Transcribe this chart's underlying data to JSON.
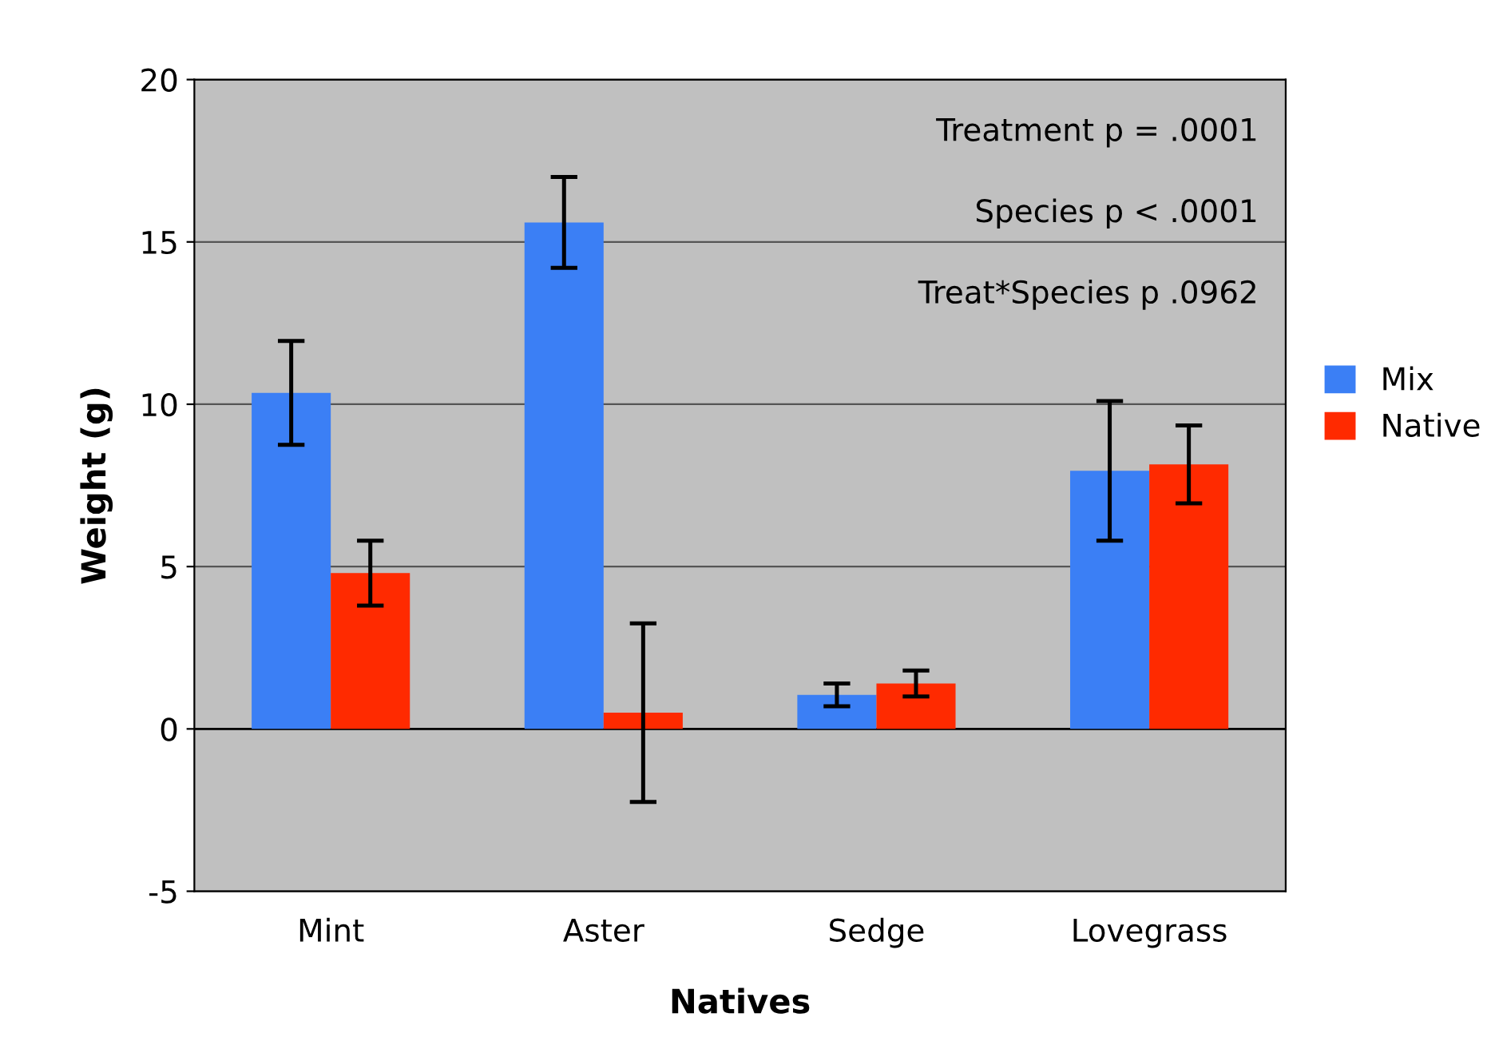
{
  "chart_data": {
    "type": "bar",
    "xlabel": "Natives",
    "ylabel": "Weight (g)",
    "categories": [
      "Mint",
      "Aster",
      "Sedge",
      "Lovegrass"
    ],
    "series": [
      {
        "name": "Mix",
        "color": "#3b7ff5",
        "values": [
          10.35,
          15.6,
          1.05,
          7.95
        ],
        "errors": [
          1.6,
          1.4,
          0.35,
          2.15
        ]
      },
      {
        "name": "Native",
        "color": "#ff2a00",
        "values": [
          4.8,
          0.5,
          1.4,
          8.15
        ],
        "errors": [
          1.0,
          2.75,
          0.4,
          1.2
        ]
      }
    ],
    "ylim": [
      -5,
      20
    ],
    "yticks": [
      -5,
      0,
      5,
      10,
      15,
      20
    ],
    "grid": "y",
    "legend": "right",
    "annotations": [
      "Treatment p = .0001",
      "Species p < .0001",
      "Treat*Species p .0962"
    ]
  }
}
